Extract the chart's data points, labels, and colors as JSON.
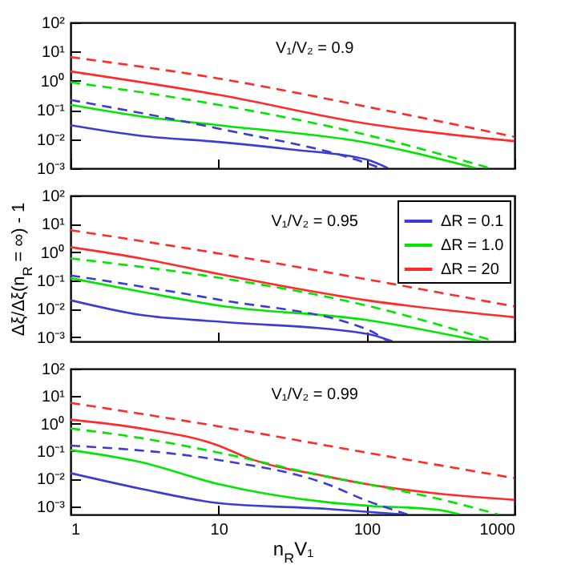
{
  "chart_data": [
    {
      "type": "line",
      "annotations": [
        "V₁/V₂ = 0.9"
      ],
      "log": "xy",
      "xlim": [
        1,
        1000
      ],
      "ylim": [
        0.001,
        100
      ],
      "xticks": [
        1,
        10,
        100,
        1000
      ],
      "yticks": [
        {
          "value": 0.001,
          "label": "10⁻³"
        },
        {
          "value": 0.01,
          "label": "10⁻²"
        },
        {
          "value": 0.1,
          "label": "10⁻¹"
        },
        {
          "value": 1,
          "label": "10⁰"
        },
        {
          "value": 10,
          "label": "10¹"
        },
        {
          "value": 100,
          "label": "10²"
        }
      ],
      "tick_labels": "y",
      "series": [
        {
          "color": "#3c3cd2",
          "line_style": "solid",
          "x": [
            1,
            3,
            10,
            30,
            100,
            140
          ],
          "values": [
            0.03,
            0.013,
            0.008,
            0.0045,
            0.002,
            0.001
          ]
        },
        {
          "color": "#00e600",
          "line_style": "solid",
          "x": [
            1,
            3,
            10,
            100,
            550
          ],
          "values": [
            0.15,
            0.06,
            0.03,
            0.0076,
            0.001
          ]
        },
        {
          "color": "#ff2a2a",
          "line_style": "solid",
          "x": [
            1,
            10,
            100,
            1000
          ],
          "values": [
            2.1,
            0.33,
            0.034,
            0.0085
          ]
        },
        {
          "color": "#3c3cd2",
          "line_style": "dashed",
          "x": [
            1,
            10,
            100,
            125
          ],
          "values": [
            0.22,
            0.023,
            0.0015,
            0.001
          ]
        },
        {
          "color": "#00e600",
          "line_style": "dashed",
          "x": [
            1,
            10,
            100,
            690
          ],
          "values": [
            0.9,
            0.15,
            0.014,
            0.001
          ]
        },
        {
          "color": "#ff2a2a",
          "line_style": "dashed",
          "x": [
            1,
            10,
            100,
            1000
          ],
          "values": [
            6.5,
            1.2,
            0.13,
            0.012
          ]
        }
      ]
    },
    {
      "type": "line",
      "annotations": [
        "V₁/V₂ = 0.95"
      ],
      "ylabel": "Δξ/Δξ(n$_{R}$ = ∞) - 1",
      "legend": "top right",
      "log": "xy",
      "xlim": [
        1,
        1000
      ],
      "ylim": [
        0.0007,
        100
      ],
      "xticks": [
        1,
        10,
        100,
        1000
      ],
      "yticks": [
        {
          "value": 0.001,
          "label": "10⁻³"
        },
        {
          "value": 0.01,
          "label": "10⁻²"
        },
        {
          "value": 0.1,
          "label": "10⁻¹"
        },
        {
          "value": 1,
          "label": "10⁰"
        },
        {
          "value": 10,
          "label": "10¹"
        },
        {
          "value": 100,
          "label": "10²"
        }
      ],
      "tick_labels": "y",
      "series": [
        {
          "name": "ΔR = 0.1",
          "color": "#3c3cd2",
          "line_style": "solid",
          "x": [
            1,
            3,
            10,
            100,
            150
          ],
          "values": [
            0.02,
            0.006,
            0.0035,
            0.0013,
            0.0007
          ]
        },
        {
          "name": "ΔR = 1.0",
          "color": "#00e600",
          "line_style": "solid",
          "x": [
            1,
            3,
            10,
            100,
            600
          ],
          "values": [
            0.12,
            0.04,
            0.013,
            0.004,
            0.0007
          ]
        },
        {
          "name": "ΔR = 20",
          "color": "#ff2a2a",
          "line_style": "solid",
          "x": [
            1,
            3,
            10,
            100,
            1000
          ],
          "values": [
            1.5,
            0.6,
            0.17,
            0.02,
            0.005
          ]
        },
        {
          "color": "#3c3cd2",
          "line_style": "dashed",
          "x": [
            1,
            10,
            100,
            140
          ],
          "values": [
            0.15,
            0.021,
            0.0019,
            0.0007
          ]
        },
        {
          "color": "#00e600",
          "line_style": "dashed",
          "x": [
            1,
            10,
            100,
            740
          ],
          "values": [
            0.6,
            0.125,
            0.013,
            0.0007
          ]
        },
        {
          "color": "#ff2a2a",
          "line_style": "dashed",
          "x": [
            1,
            10,
            100,
            1000
          ],
          "values": [
            6,
            0.9,
            0.11,
            0.012
          ]
        }
      ]
    },
    {
      "type": "line",
      "annotations": [
        "V₁/V₂ = 0.99"
      ],
      "xlabel": "n$_{R}$V₁",
      "log": "xy",
      "xlim": [
        1,
        1000
      ],
      "ylim": [
        0.0005,
        100
      ],
      "xticks": [
        1,
        10,
        100,
        1000
      ],
      "yticks": [
        {
          "value": 0.001,
          "label": "10⁻³"
        },
        {
          "value": 0.01,
          "label": "10⁻²"
        },
        {
          "value": 0.1,
          "label": "10⁻¹"
        },
        {
          "value": 1,
          "label": "10⁰"
        },
        {
          "value": 10,
          "label": "10¹"
        },
        {
          "value": 100,
          "label": "10²"
        }
      ],
      "series": [
        {
          "color": "#3c3cd2",
          "line_style": "solid",
          "x": [
            1,
            3,
            10,
            54,
            180
          ],
          "values": [
            0.016,
            0.0043,
            0.0013,
            0.0008,
            0.0005
          ]
        },
        {
          "color": "#00e600",
          "line_style": "solid",
          "x": [
            1,
            3,
            10,
            54,
            100,
            300,
            430
          ],
          "values": [
            0.11,
            0.04,
            0.0064,
            0.0014,
            0.00105,
            0.00075,
            0.0005
          ]
        },
        {
          "color": "#ff2a2a",
          "line_style": "solid",
          "x": [
            1,
            3,
            10,
            15.5,
            54,
            100,
            300,
            1000
          ],
          "values": [
            1.4,
            0.67,
            0.16,
            0.059,
            0.012,
            0.0064,
            0.0029,
            0.0017
          ]
        },
        {
          "color": "#3c3cd2",
          "line_style": "dashed",
          "x": [
            1,
            10,
            54,
            100,
            190
          ],
          "values": [
            0.16,
            0.048,
            0.0064,
            0.0016,
            0.0005
          ]
        },
        {
          "color": "#00e600",
          "line_style": "dashed",
          "x": [
            1,
            3,
            10,
            54,
            100,
            300,
            780
          ],
          "values": [
            0.67,
            0.3,
            0.089,
            0.012,
            0.0064,
            0.0019,
            0.0005
          ]
        },
        {
          "color": "#ff2a2a",
          "line_style": "dashed",
          "x": [
            1,
            10,
            100,
            1000
          ],
          "values": [
            5.7,
            0.8,
            0.089,
            0.0105
          ]
        }
      ]
    }
  ]
}
